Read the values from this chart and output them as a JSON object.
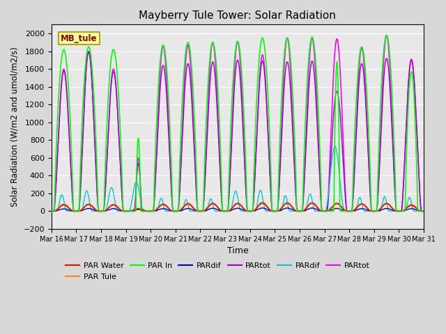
{
  "title": "Mayberry Tule Tower: Solar Radiation",
  "ylabel": "Solar Radiation (W/m2 and umol/m2/s)",
  "xlabel": "Time",
  "ylim": [
    -200,
    2100
  ],
  "yticks": [
    -200,
    0,
    200,
    400,
    600,
    800,
    1000,
    1200,
    1400,
    1600,
    1800,
    2000
  ],
  "fig_bg": "#d8d8d8",
  "plot_bg": "#e8e8e8",
  "legend_label": "MB_tule",
  "legend_label_color": "#8B0000",
  "legend_label_bg": "#ffff99",
  "legend_label_edge": "#999900",
  "series_colors": {
    "red": "#ff0000",
    "orange": "#ff8800",
    "green": "#00ff00",
    "blue": "#0000cc",
    "purple": "#9900cc",
    "cyan": "#00cccc",
    "magenta": "#ff00ff"
  },
  "n_days": 15,
  "start_day": 16,
  "ppd": 480,
  "day_peaks_magenta": [
    1600,
    1800,
    1600,
    600,
    1860,
    1870,
    1900,
    1910,
    1760,
    1950,
    1950,
    1940,
    1840,
    1980,
    1710
  ],
  "day_peaks_green": [
    1820,
    1850,
    1820,
    820,
    1870,
    1900,
    1900,
    1910,
    1950,
    1950,
    1960,
    1680,
    1850,
    1980,
    1570
  ],
  "day_peaks_orange": [
    80,
    80,
    75,
    30,
    80,
    90,
    90,
    90,
    100,
    95,
    95,
    90,
    85,
    90,
    75
  ],
  "day_peaks_red": [
    70,
    75,
    70,
    25,
    75,
    80,
    85,
    85,
    90,
    90,
    90,
    85,
    80,
    85,
    65
  ],
  "day_peaks_cyan": [
    185,
    230,
    265,
    330,
    145,
    130,
    140,
    225,
    235,
    175,
    195,
    730,
    155,
    165,
    155
  ],
  "day_peaks_blue": [
    25,
    30,
    28,
    18,
    28,
    30,
    32,
    32,
    35,
    35,
    35,
    30,
    28,
    30,
    28
  ],
  "day_peaks_purple": [
    1580,
    1790,
    1570,
    540,
    1640,
    1660,
    1680,
    1700,
    1690,
    1680,
    1690,
    1350,
    1660,
    1720,
    1700
  ],
  "day_widths_magenta": [
    0.4,
    0.4,
    0.4,
    0.15,
    0.4,
    0.4,
    0.4,
    0.4,
    0.4,
    0.4,
    0.4,
    0.4,
    0.4,
    0.4,
    0.4
  ],
  "day_widths_green": [
    0.38,
    0.38,
    0.38,
    0.1,
    0.38,
    0.38,
    0.38,
    0.38,
    0.38,
    0.38,
    0.38,
    0.12,
    0.38,
    0.38,
    0.25
  ],
  "day_widths_cyan": [
    0.2,
    0.22,
    0.25,
    0.3,
    0.18,
    0.17,
    0.18,
    0.22,
    0.22,
    0.18,
    0.2,
    0.4,
    0.18,
    0.18,
    0.18
  ]
}
